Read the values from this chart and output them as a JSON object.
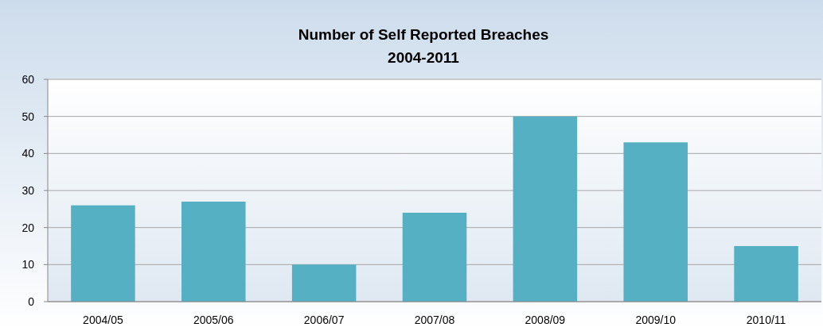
{
  "chart_data": {
    "type": "bar",
    "title": "Number of Self Reported Breaches",
    "subtitle": "2004-2011",
    "categories": [
      "2004/05",
      "2005/06",
      "2006/07",
      "2007/08",
      "2008/09",
      "2009/10",
      "2010/11"
    ],
    "values": [
      26,
      27,
      10,
      24,
      50,
      43,
      15
    ],
    "color": "#56b0c4",
    "ylim": [
      0,
      60
    ],
    "yticks": [
      0,
      10,
      20,
      30,
      40,
      50,
      60
    ],
    "grid": "y"
  }
}
